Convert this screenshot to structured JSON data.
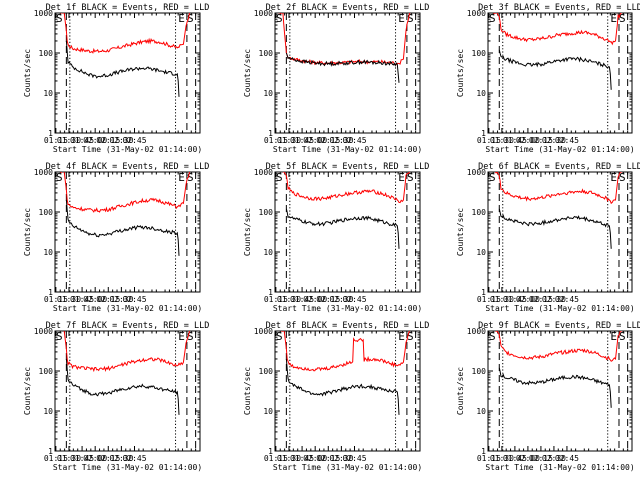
{
  "figure": {
    "background": "#ffffff",
    "events_color": "#000000",
    "lld_color": "#ff0000",
    "xlabel": "Start Time (31-May-02 01:14:00)",
    "ylabel": "Counts/sec"
  },
  "chart_data": [
    {
      "type": "line",
      "title": "Det 1f BLACK = Events, RED = LLD",
      "yscale": "log",
      "ylim": [
        1,
        1000
      ],
      "xticks": [
        "01:15",
        "01:30",
        "01:45",
        "02:00",
        "02:15",
        "02:30",
        "02:45"
      ],
      "markers": {
        "S_start": "S",
        "E": "E",
        "S_end": "S"
      },
      "series": [
        {
          "name": "LLD",
          "x": [
            1.0,
            10.5,
            13.0,
            14.0,
            15.0,
            20,
            30,
            40,
            50,
            60,
            70,
            80,
            90,
            100,
            110,
            120,
            130,
            140,
            142,
            147,
            150,
            154,
            156,
            158
          ],
          "y": [
            1200,
            1000,
            350,
            200,
            160,
            130,
            120,
            112,
            110,
            115,
            130,
            150,
            170,
            190,
            200,
            190,
            160,
            135,
            145,
            165,
            500,
            1000,
            1200,
            1200
          ]
        },
        {
          "name": "Events",
          "x": [
            13.0,
            15.0,
            20,
            30,
            40,
            50,
            60,
            70,
            80,
            90,
            100,
            110,
            120,
            130,
            140,
            141,
            142
          ],
          "y": [
            200,
            60,
            45,
            35,
            28,
            26,
            28,
            32,
            36,
            40,
            42,
            40,
            36,
            32,
            30,
            20,
            8
          ]
        }
      ]
    },
    {
      "type": "line",
      "title": "Det 2f BLACK = Events, RED = LLD",
      "yscale": "log",
      "ylim": [
        1,
        1000
      ],
      "xticks": [
        "01:15",
        "01:30",
        "01:45",
        "02:00",
        "02:15",
        "02:30",
        "02:45"
      ],
      "markers": {
        "S_start": "S",
        "E": "E",
        "S_end": "S"
      },
      "series": [
        {
          "name": "LLD",
          "x": [
            1.0,
            9.0,
            11.0,
            13.0,
            15.0,
            20,
            30,
            40,
            50,
            60,
            70,
            80,
            90,
            100,
            110,
            120,
            130,
            140,
            142,
            147,
            150,
            154,
            158
          ],
          "y": [
            1200,
            1000,
            300,
            100,
            78,
            72,
            65,
            60,
            57,
            56,
            57,
            58,
            60,
            61,
            60,
            60,
            58,
            55,
            55,
            70,
            400,
            1000,
            1200
          ]
        },
        {
          "name": "Events",
          "x": [
            13.0,
            15.0,
            20,
            30,
            40,
            50,
            60,
            70,
            80,
            90,
            100,
            110,
            120,
            130,
            140,
            141,
            142
          ],
          "y": [
            100,
            75,
            70,
            62,
            58,
            55,
            54,
            55,
            56,
            58,
            60,
            58,
            57,
            55,
            52,
            30,
            18
          ]
        }
      ]
    },
    {
      "type": "line",
      "title": "Det 3f BLACK = Events, RED = LLD",
      "yscale": "log",
      "ylim": [
        1,
        1000
      ],
      "xticks": [
        "01:15",
        "01:30",
        "01:45",
        "02:00",
        "02:15",
        "02:30",
        "02:45"
      ],
      "markers": {
        "S_start": "S",
        "E": "E",
        "S_end": "S"
      },
      "series": [
        {
          "name": "LLD",
          "x": [
            1.0,
            10.5,
            13.0,
            14.0,
            15.0,
            20,
            30,
            40,
            50,
            60,
            70,
            80,
            90,
            100,
            110,
            120,
            130,
            140,
            142,
            147,
            150,
            154,
            156,
            158
          ],
          "y": [
            1200,
            1000,
            800,
            600,
            400,
            300,
            250,
            220,
            215,
            225,
            250,
            280,
            300,
            320,
            330,
            300,
            250,
            200,
            180,
            200,
            800,
            1000,
            1200,
            1200
          ]
        },
        {
          "name": "Events",
          "x": [
            13.0,
            15.0,
            20,
            30,
            40,
            50,
            60,
            70,
            80,
            90,
            100,
            110,
            120,
            130,
            140,
            141,
            142
          ],
          "y": [
            120,
            80,
            70,
            60,
            52,
            50,
            52,
            58,
            64,
            70,
            72,
            68,
            60,
            52,
            45,
            30,
            12
          ]
        }
      ]
    },
    {
      "type": "line",
      "title": "Det 4f BLACK = Events, RED = LLD",
      "yscale": "log",
      "ylim": [
        1,
        1000
      ],
      "xticks": [
        "01:15",
        "01:30",
        "01:45",
        "02:00",
        "02:15",
        "02:30",
        "02:45"
      ],
      "markers": {
        "S_start": "S",
        "E": "E",
        "S_end": "S"
      },
      "series": [
        {
          "name": "LLD",
          "x": [
            1.0,
            10.5,
            13.0,
            14.0,
            15.0,
            20,
            30,
            40,
            50,
            60,
            70,
            80,
            90,
            100,
            110,
            120,
            130,
            140,
            142,
            147,
            150,
            154,
            156,
            158
          ],
          "y": [
            1200,
            1000,
            350,
            200,
            160,
            130,
            120,
            112,
            110,
            115,
            130,
            150,
            170,
            190,
            200,
            190,
            160,
            135,
            145,
            165,
            500,
            1000,
            1200,
            1200
          ]
        },
        {
          "name": "Events",
          "x": [
            13.0,
            15.0,
            20,
            30,
            40,
            50,
            60,
            70,
            80,
            90,
            100,
            110,
            120,
            130,
            140,
            141,
            142
          ],
          "y": [
            200,
            60,
            45,
            35,
            28,
            26,
            28,
            32,
            36,
            40,
            42,
            40,
            36,
            32,
            30,
            20,
            8
          ]
        }
      ]
    },
    {
      "type": "line",
      "title": "Det 5f BLACK = Events, RED = LLD",
      "yscale": "log",
      "ylim": [
        1,
        1000
      ],
      "xticks": [
        "01:15",
        "01:30",
        "01:45",
        "02:00",
        "02:15",
        "02:30",
        "02:45"
      ],
      "markers": {
        "S_start": "S",
        "E": "E",
        "S_end": "S"
      },
      "series": [
        {
          "name": "LLD",
          "x": [
            1.0,
            10.5,
            13.0,
            14.0,
            15.0,
            20,
            30,
            40,
            50,
            60,
            70,
            80,
            90,
            100,
            110,
            120,
            130,
            140,
            142,
            147,
            150,
            154,
            156,
            158
          ],
          "y": [
            1200,
            1000,
            800,
            600,
            400,
            300,
            250,
            220,
            215,
            225,
            250,
            280,
            300,
            320,
            330,
            300,
            250,
            200,
            180,
            200,
            800,
            1000,
            1200,
            1200
          ]
        },
        {
          "name": "Events",
          "x": [
            13.0,
            15.0,
            20,
            30,
            40,
            50,
            60,
            70,
            80,
            90,
            100,
            110,
            120,
            130,
            140,
            141,
            142
          ],
          "y": [
            120,
            80,
            70,
            60,
            52,
            50,
            52,
            58,
            64,
            70,
            72,
            68,
            60,
            52,
            45,
            30,
            12
          ]
        }
      ]
    },
    {
      "type": "line",
      "title": "Det 6f BLACK = Events, RED = LLD",
      "yscale": "log",
      "ylim": [
        1,
        1000
      ],
      "xticks": [
        "01:15",
        "01:30",
        "01:45",
        "02:00",
        "02:15",
        "02:30",
        "02:45"
      ],
      "markers": {
        "S_start": "S",
        "E": "E",
        "S_end": "S"
      },
      "series": [
        {
          "name": "LLD",
          "x": [
            1.0,
            10.5,
            13.0,
            14.0,
            15.0,
            20,
            30,
            40,
            50,
            60,
            70,
            80,
            90,
            100,
            110,
            120,
            130,
            140,
            142,
            147,
            150,
            154,
            156,
            158
          ],
          "y": [
            1200,
            1000,
            800,
            600,
            400,
            300,
            250,
            220,
            215,
            225,
            250,
            280,
            300,
            320,
            330,
            300,
            250,
            200,
            180,
            200,
            800,
            1000,
            1200,
            1200
          ]
        },
        {
          "name": "Events",
          "x": [
            13.0,
            15.0,
            20,
            30,
            40,
            50,
            60,
            70,
            80,
            90,
            100,
            110,
            120,
            130,
            140,
            141,
            142
          ],
          "y": [
            120,
            80,
            70,
            60,
            52,
            50,
            52,
            58,
            64,
            70,
            72,
            68,
            60,
            52,
            45,
            30,
            12
          ]
        }
      ]
    },
    {
      "type": "line",
      "title": "Det 7f BLACK = Events, RED = LLD",
      "yscale": "log",
      "ylim": [
        1,
        1000
      ],
      "xticks": [
        "01:15",
        "01:30",
        "01:45",
        "02:00",
        "02:15",
        "02:30",
        "02:45"
      ],
      "markers": {
        "S_start": "S",
        "E": "E",
        "S_end": "S"
      },
      "series": [
        {
          "name": "LLD",
          "x": [
            1.0,
            10.5,
            13.0,
            14.0,
            15.0,
            20,
            30,
            40,
            50,
            60,
            70,
            80,
            90,
            100,
            110,
            120,
            130,
            140,
            142,
            147,
            150,
            154,
            156,
            158
          ],
          "y": [
            1200,
            1000,
            350,
            200,
            160,
            130,
            120,
            112,
            110,
            115,
            130,
            150,
            170,
            190,
            200,
            190,
            160,
            135,
            145,
            165,
            500,
            1000,
            1200,
            1200
          ]
        },
        {
          "name": "Events",
          "x": [
            13.0,
            15.0,
            20,
            30,
            40,
            50,
            60,
            70,
            80,
            90,
            100,
            110,
            120,
            130,
            140,
            141,
            142
          ],
          "y": [
            200,
            60,
            45,
            35,
            28,
            26,
            28,
            32,
            36,
            40,
            42,
            40,
            36,
            32,
            30,
            20,
            8
          ]
        }
      ]
    },
    {
      "type": "line",
      "title": "Det 8f BLACK = Events, RED = LLD",
      "yscale": "log",
      "ylim": [
        1,
        1000
      ],
      "xticks": [
        "01:15",
        "01:30",
        "01:45",
        "02:00",
        "02:15",
        "02:30",
        "02:45"
      ],
      "markers": {
        "S_start": "S",
        "E": "E",
        "S_end": "S"
      },
      "series": [
        {
          "name": "LLD",
          "x": [
            1.0,
            10.5,
            13.0,
            14.0,
            15.0,
            20,
            30,
            40,
            50,
            60,
            70,
            80,
            89,
            90,
            101,
            102,
            110,
            120,
            130,
            140,
            142,
            147,
            150,
            154,
            156,
            158
          ],
          "y": [
            1200,
            1000,
            350,
            200,
            160,
            130,
            120,
            112,
            110,
            115,
            130,
            150,
            170,
            600,
            600,
            190,
            200,
            190,
            160,
            135,
            145,
            165,
            500,
            1000,
            1200,
            1200
          ]
        },
        {
          "name": "Events",
          "x": [
            13.0,
            15.0,
            20,
            30,
            40,
            50,
            60,
            70,
            80,
            90,
            100,
            110,
            120,
            130,
            140,
            141,
            142
          ],
          "y": [
            200,
            60,
            45,
            35,
            28,
            26,
            28,
            32,
            36,
            40,
            42,
            40,
            36,
            32,
            30,
            20,
            8
          ]
        }
      ]
    },
    {
      "type": "line",
      "title": "Det 9f BLACK = Events, RED = LLD",
      "yscale": "log",
      "ylim": [
        1,
        1000
      ],
      "xticks": [
        "01:15",
        "01:30",
        "01:45",
        "02:00",
        "02:15",
        "02:30",
        "02:45"
      ],
      "markers": {
        "S_start": "S",
        "E": "E",
        "S_end": "S"
      },
      "series": [
        {
          "name": "LLD",
          "x": [
            1.0,
            10.5,
            13.0,
            14.0,
            15.0,
            20,
            30,
            40,
            50,
            60,
            70,
            80,
            90,
            100,
            110,
            120,
            130,
            140,
            142,
            147,
            150,
            154,
            156,
            158
          ],
          "y": [
            1200,
            1000,
            800,
            600,
            400,
            300,
            250,
            220,
            215,
            225,
            250,
            280,
            300,
            320,
            330,
            300,
            250,
            200,
            180,
            200,
            800,
            1000,
            1200,
            1200
          ]
        },
        {
          "name": "Events",
          "x": [
            13.0,
            15.0,
            20,
            30,
            40,
            50,
            60,
            70,
            80,
            90,
            100,
            110,
            120,
            130,
            140,
            141,
            142
          ],
          "y": [
            120,
            80,
            70,
            60,
            52,
            50,
            52,
            58,
            64,
            70,
            72,
            68,
            60,
            52,
            45,
            30,
            12
          ]
        }
      ]
    }
  ]
}
